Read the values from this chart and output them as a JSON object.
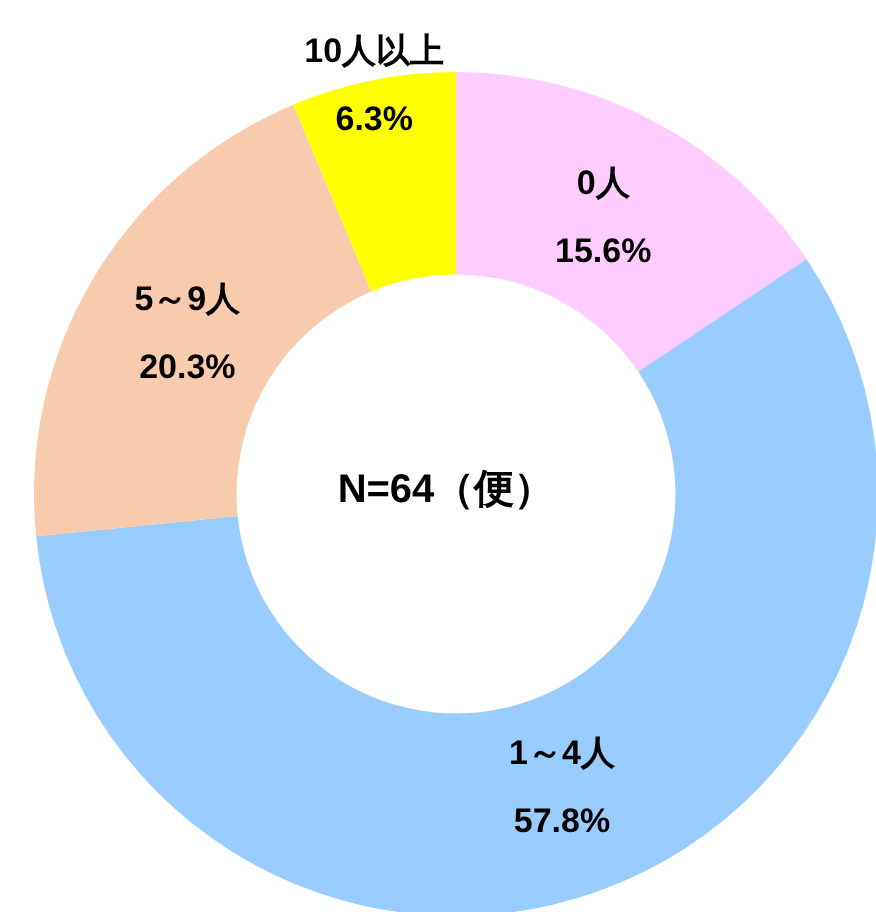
{
  "chart_data": {
    "type": "donut",
    "categories": [
      "0人",
      "1～4人",
      "5～9人",
      "10人以上"
    ],
    "values": [
      15.6,
      57.8,
      20.3,
      6.3
    ],
    "colors": [
      "#ffccff",
      "#99ccff",
      "#f8cbad",
      "#ffff00"
    ],
    "value_labels": [
      "15.6%",
      "57.8%",
      "20.3%",
      "6.3%"
    ],
    "annotations": [
      "N=64（便）"
    ]
  }
}
